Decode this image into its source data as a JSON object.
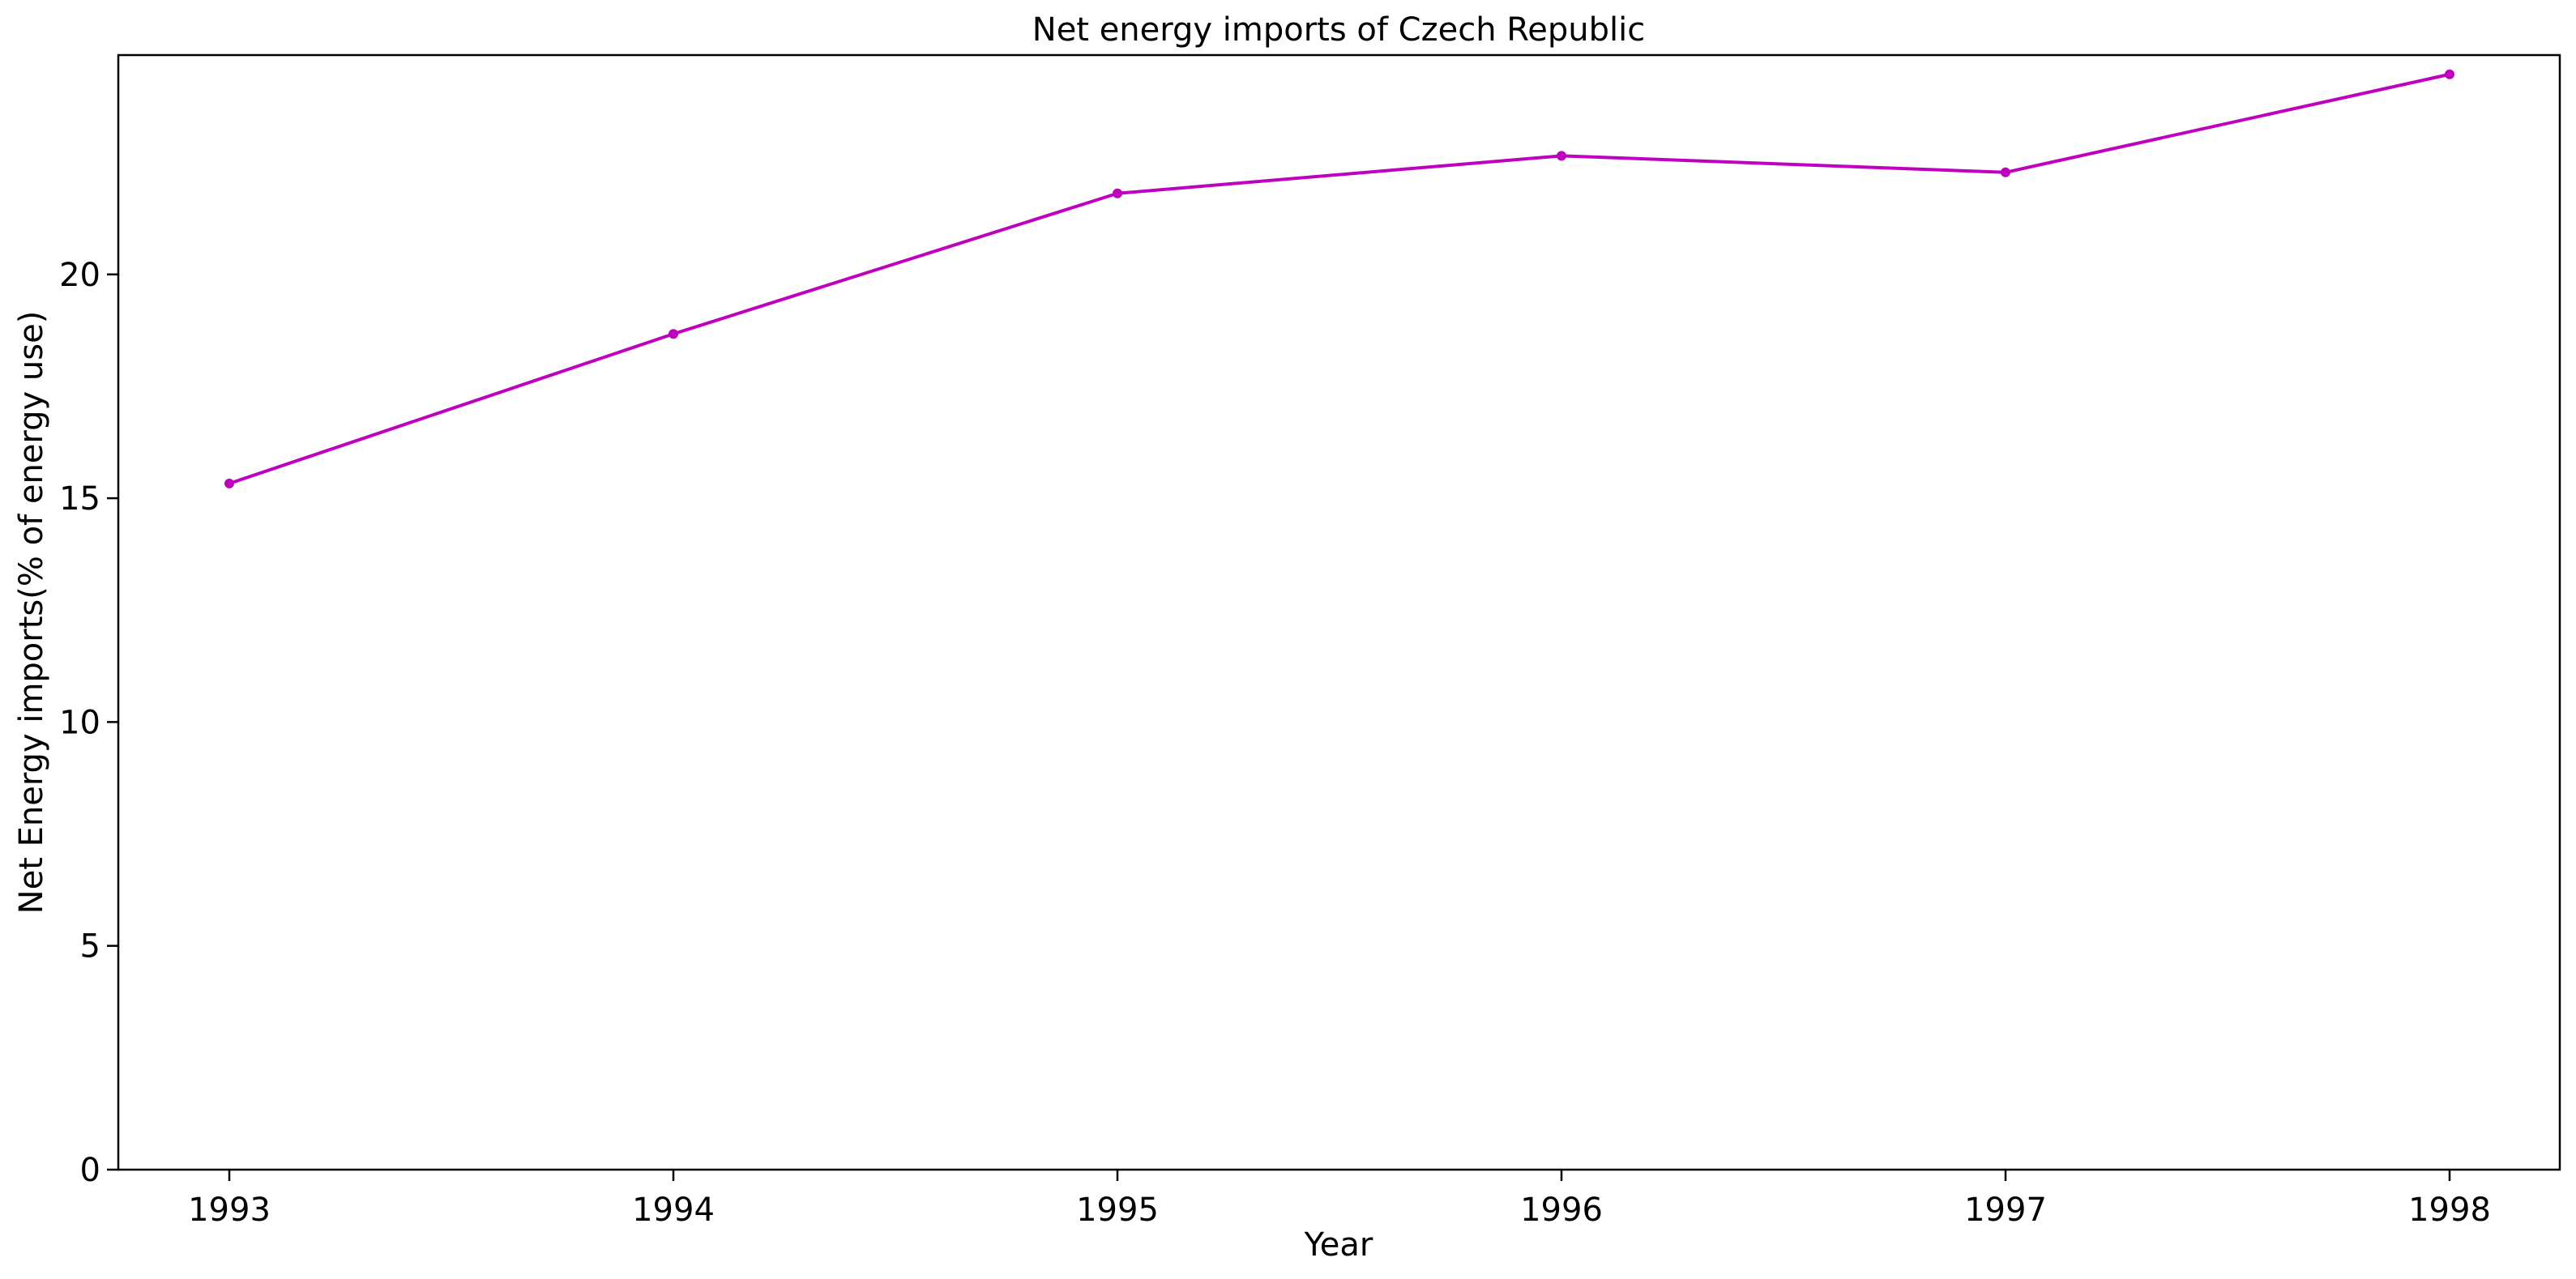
{
  "chart_data": {
    "type": "line",
    "title": "Net energy imports of Czech Republic",
    "xlabel": "Year",
    "ylabel": "Net Energy imports(% of energy use)",
    "categories": [
      "1993",
      "1994",
      "1995",
      "1996",
      "1997",
      "1998"
    ],
    "series": [
      {
        "name": "Net energy imports",
        "values": [
          15.33,
          18.67,
          21.81,
          22.65,
          22.28,
          24.47
        ],
        "color": "#bf00bf"
      }
    ],
    "ylim": [
      0,
      24.9
    ],
    "yticks": [
      0,
      5,
      10,
      15,
      20
    ],
    "grid": false,
    "legend": "none"
  }
}
